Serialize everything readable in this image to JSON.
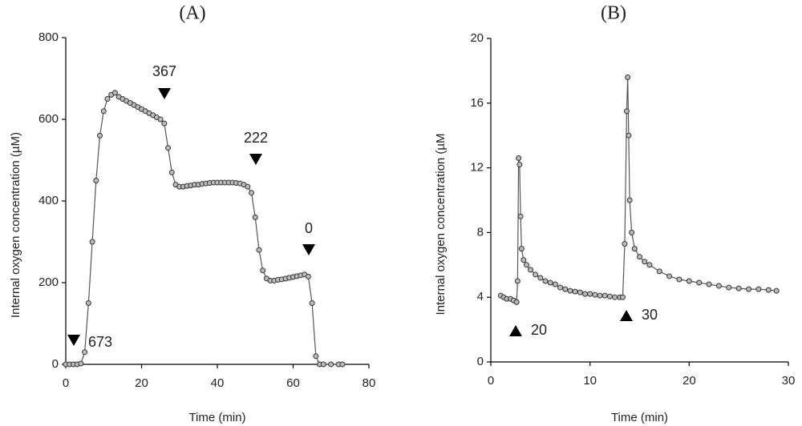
{
  "chart_data": [
    {
      "type": "line",
      "title": "(A)",
      "xlabel": "Time (min)",
      "ylabel": "Internal oxygen concentration (µM)",
      "xlim": [
        0,
        80
      ],
      "xticks": [
        0,
        20,
        40,
        60,
        80
      ],
      "ylim": [
        0,
        800
      ],
      "yticks": [
        0,
        200,
        400,
        600,
        800
      ],
      "grid": false,
      "annotations": [
        "673",
        "367",
        "222",
        "0"
      ],
      "series": [
        {
          "color": "#555555",
          "x": [
            0,
            1,
            2,
            3,
            4,
            5,
            6,
            7,
            8,
            9,
            10,
            11,
            12,
            13,
            14,
            15,
            16,
            17,
            18,
            19,
            20,
            21,
            22,
            23,
            24,
            25,
            26,
            27,
            28,
            29,
            30,
            31,
            32,
            33,
            34,
            35,
            36,
            37,
            38,
            39,
            40,
            41,
            42,
            43,
            44,
            45,
            46,
            47,
            48,
            49,
            50,
            51,
            52,
            53,
            54,
            55,
            56,
            57,
            58,
            59,
            60,
            61,
            62,
            63,
            64,
            65,
            66,
            67,
            68,
            70,
            72,
            73
          ],
          "values": [
            0,
            0,
            0,
            0,
            2,
            30,
            150,
            300,
            450,
            560,
            620,
            650,
            660,
            665,
            655,
            650,
            645,
            640,
            635,
            630,
            625,
            620,
            615,
            610,
            605,
            600,
            590,
            530,
            470,
            440,
            435,
            435,
            437,
            438,
            440,
            440,
            442,
            443,
            444,
            445,
            445,
            445,
            445,
            445,
            445,
            444,
            443,
            440,
            435,
            420,
            360,
            280,
            230,
            210,
            205,
            205,
            207,
            208,
            210,
            212,
            214,
            216,
            218,
            220,
            215,
            150,
            20,
            0,
            0,
            0,
            0,
            0
          ]
        }
      ]
    },
    {
      "type": "line",
      "title": "(B)",
      "xlabel": "Time (min)",
      "ylabel": "Internal oxygen concentration (µM",
      "xlim": [
        0,
        30
      ],
      "xticks": [
        0,
        10,
        20,
        30
      ],
      "ylim": [
        0,
        20
      ],
      "yticks": [
        0,
        4,
        8,
        12,
        16,
        20
      ],
      "grid": false,
      "annotations": [
        "20",
        "30"
      ],
      "series": [
        {
          "color": "#555555",
          "x": [
            1,
            1.3,
            1.6,
            2,
            2.3,
            2.6,
            2.7,
            2.8,
            2.9,
            3.0,
            3.1,
            3.3,
            3.6,
            4,
            4.5,
            5,
            5.5,
            6,
            6.5,
            7,
            7.5,
            8,
            8.5,
            9,
            9.5,
            10,
            10.5,
            11,
            11.5,
            12,
            12.5,
            13,
            13.3,
            13.5,
            13.7,
            13.8,
            13.9,
            14.0,
            14.2,
            14.5,
            15,
            15.5,
            16,
            17,
            18,
            19,
            20,
            21,
            22,
            23,
            24,
            25,
            26,
            27,
            28,
            28.8
          ],
          "values": [
            4.1,
            4.0,
            3.9,
            3.9,
            3.8,
            3.7,
            5,
            12.6,
            12.2,
            9,
            7,
            6.3,
            6.0,
            5.7,
            5.4,
            5.2,
            5.0,
            4.9,
            4.8,
            4.6,
            4.5,
            4.4,
            4.35,
            4.3,
            4.2,
            4.2,
            4.15,
            4.1,
            4.1,
            4.05,
            4.0,
            4.0,
            4.0,
            7.3,
            15.5,
            17.6,
            14,
            10,
            8,
            7,
            6.5,
            6.2,
            6,
            5.6,
            5.3,
            5.1,
            5.0,
            4.9,
            4.8,
            4.7,
            4.6,
            4.55,
            4.5,
            4.5,
            4.45,
            4.4
          ]
        }
      ]
    }
  ]
}
